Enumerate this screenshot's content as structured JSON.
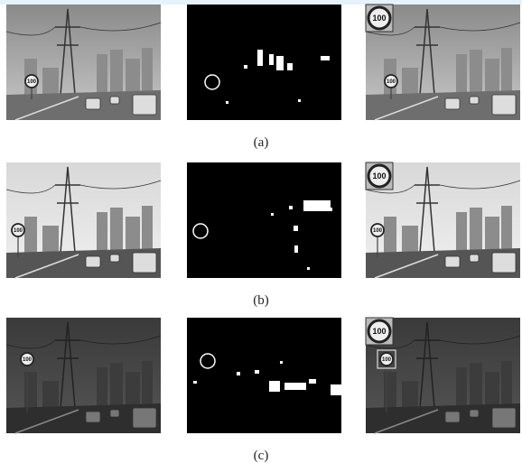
{
  "figure": {
    "panels": [
      {
        "label": "(a)"
      },
      {
        "label": "(b)"
      },
      {
        "label": "(c)"
      }
    ],
    "sign_text": "100"
  }
}
